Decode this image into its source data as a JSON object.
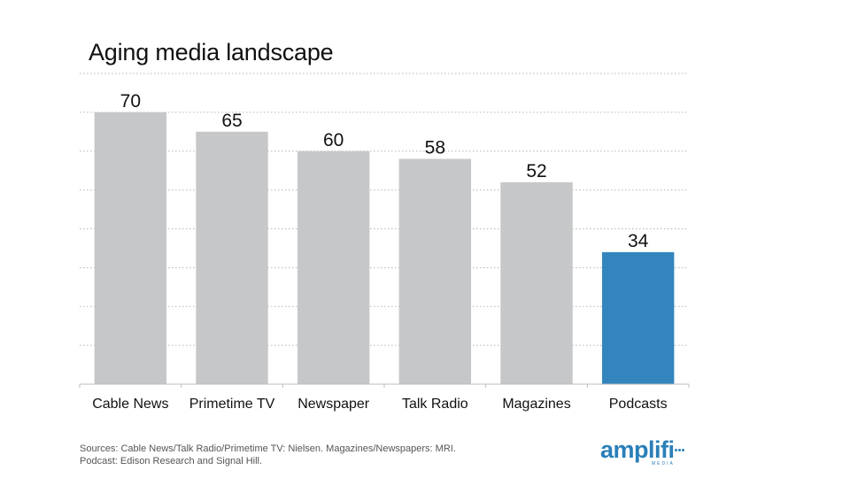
{
  "title": "Aging media landscape",
  "chart_data": {
    "type": "bar",
    "title": "Aging media landscape",
    "categories": [
      "Cable News",
      "Primetime TV",
      "Newspaper",
      "Talk Radio",
      "Magazines",
      "Podcasts"
    ],
    "values": [
      70,
      65,
      60,
      58,
      52,
      34
    ],
    "ylim": [
      0,
      80
    ],
    "grid": true,
    "y_axis_visible": false,
    "colors": {
      "default": "#c6c7c9",
      "highlight": "#3485be",
      "highlight_category": "Podcasts"
    }
  },
  "sources": {
    "line1": "Sources: Cable News/Talk Radio/Primetime TV: Nielsen. Magazines/Newspapers: MRI.",
    "line2": "Podcast: Edison Research and Signal Hill."
  },
  "logo": {
    "word": "amplifi",
    "sub": "MEDIA"
  }
}
